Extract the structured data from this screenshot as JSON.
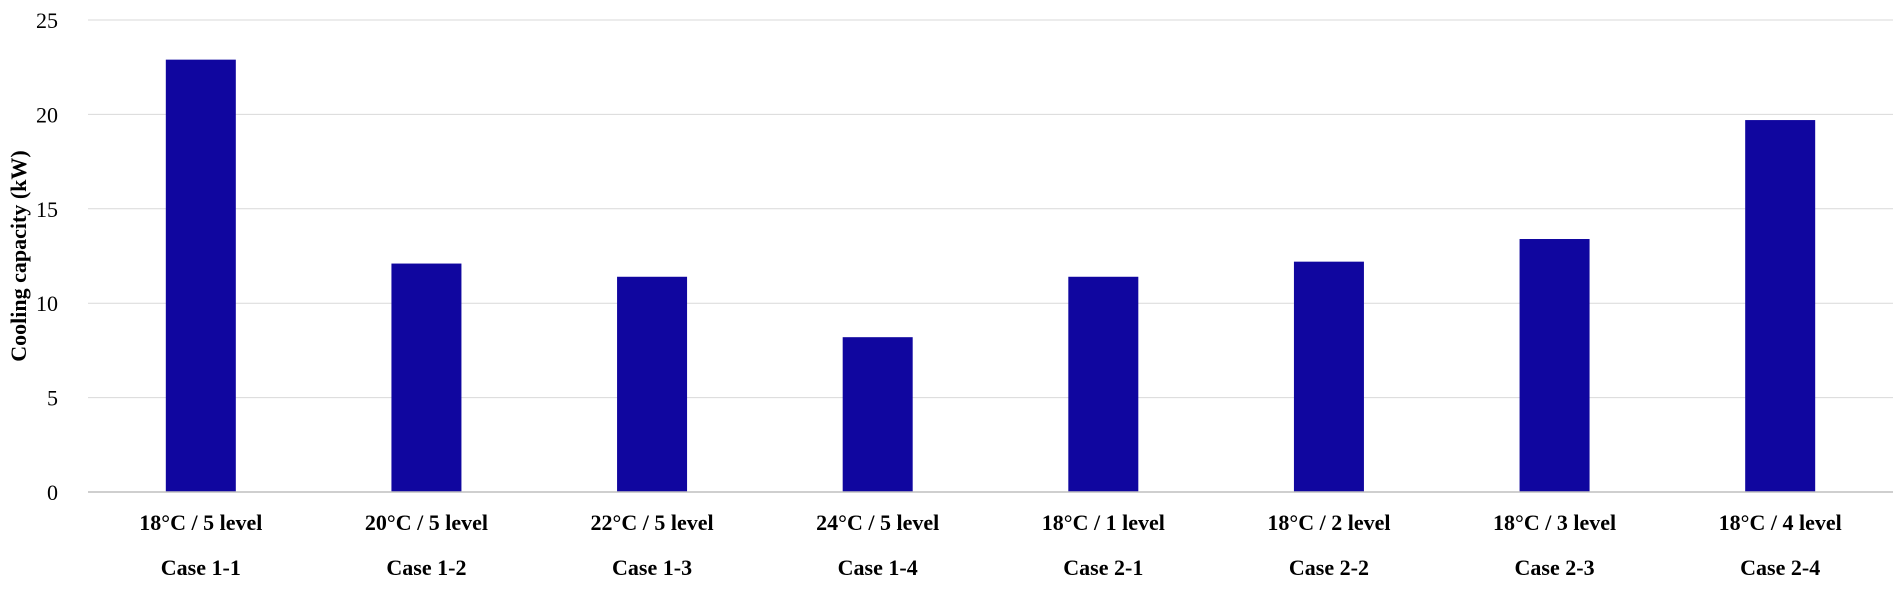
{
  "chart_data": {
    "type": "bar",
    "categories": [
      {
        "condition": "18°C / 5 level",
        "case": "Case 1-1"
      },
      {
        "condition": "20°C / 5 level",
        "case": "Case 1-2"
      },
      {
        "condition": "22°C / 5 level",
        "case": "Case 1-3"
      },
      {
        "condition": "24°C / 5 level",
        "case": "Case 1-4"
      },
      {
        "condition": "18°C / 1 level",
        "case": "Case 2-1"
      },
      {
        "condition": "18°C / 2 level",
        "case": "Case 2-2"
      },
      {
        "condition": "18°C / 3 level",
        "case": "Case 2-3"
      },
      {
        "condition": "18°C / 4 level",
        "case": "Case 2-4"
      }
    ],
    "values": [
      22.9,
      12.1,
      11.4,
      8.2,
      11.4,
      12.2,
      13.4,
      19.7
    ],
    "title": "",
    "xlabel": "",
    "ylabel": "Cooling capacity (kW)",
    "ylim": [
      0,
      25
    ],
    "yticks": [
      0,
      5,
      10,
      15,
      20,
      25
    ],
    "grid": true,
    "bar_color": "#10069f"
  }
}
